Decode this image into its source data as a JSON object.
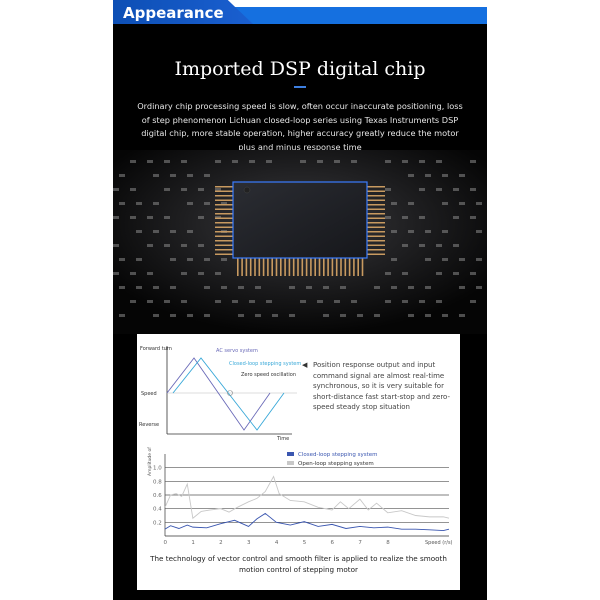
{
  "header": {
    "title": "Appearance"
  },
  "section": {
    "title": "Imported DSP digital chip",
    "description": "Ordinary chip processing speed is slow, often occur inaccurate positioning, loss of step phenomenon Lichuan closed-loop series using Texas Instruments DSP digital chip, more stable operation, higher accuracy greatly reduce the motor plus and minus response time"
  },
  "colors": {
    "accent": "#1570e0",
    "closed_loop": "#3a56b0",
    "open_loop": "#c8c8c8",
    "ac_servo": "#6a6ab8",
    "stepping": "#38a8d8"
  },
  "chart_data": [
    {
      "type": "line",
      "ylabels": [
        "Forward turn",
        "Speed",
        "Reverse"
      ],
      "xlabel": "Time",
      "series": [
        {
          "name": "AC servo system"
        },
        {
          "name": "Closed-loop stepping system"
        }
      ],
      "annotations": [
        "Zero speed oscillation"
      ]
    },
    {
      "type": "line",
      "ylabel": "Amplitude of vibration",
      "xlabel": "Speed (r/s)",
      "grid": true,
      "yticks": [
        0.2,
        0.4,
        0.6,
        0.8,
        1.0
      ],
      "xticks": [
        0,
        1,
        2,
        3,
        4,
        5,
        6,
        7,
        8
      ],
      "ylim": [
        0,
        1.2
      ],
      "xlim": [
        0,
        10.2
      ],
      "legend": "top-center",
      "series": [
        {
          "name": "Closed-loop stepping system",
          "x": [
            0,
            0.2,
            0.5,
            0.8,
            1,
            1.5,
            2,
            2.5,
            3,
            3.3,
            3.6,
            4,
            4.5,
            5,
            5.5,
            6,
            6.5,
            7,
            7.5,
            8,
            8.5,
            9,
            9.5,
            10,
            10.2
          ],
          "y": [
            0.1,
            0.15,
            0.11,
            0.16,
            0.13,
            0.12,
            0.18,
            0.23,
            0.14,
            0.25,
            0.33,
            0.2,
            0.16,
            0.21,
            0.14,
            0.17,
            0.11,
            0.14,
            0.12,
            0.13,
            0.1,
            0.1,
            0.09,
            0.08,
            0.1
          ]
        },
        {
          "name": "Open-loop stepping system",
          "x": [
            0,
            0.2,
            0.4,
            0.6,
            0.8,
            1,
            1.3,
            1.6,
            2,
            2.3,
            2.6,
            3,
            3.3,
            3.6,
            3.9,
            4.1,
            4.5,
            5,
            5.5,
            6,
            6.3,
            6.6,
            7,
            7.3,
            7.6,
            8,
            8.5,
            9,
            9.5,
            10,
            10.2
          ],
          "y": [
            0.42,
            0.6,
            0.62,
            0.58,
            0.76,
            0.26,
            0.36,
            0.38,
            0.4,
            0.35,
            0.42,
            0.5,
            0.55,
            0.65,
            0.87,
            0.62,
            0.52,
            0.5,
            0.42,
            0.38,
            0.5,
            0.4,
            0.54,
            0.38,
            0.48,
            0.34,
            0.37,
            0.3,
            0.28,
            0.28,
            0.26
          ]
        }
      ]
    }
  ],
  "chart1": {
    "y_forward": "Forward turn",
    "y_speed": "Speed",
    "y_reverse": "Reverse",
    "x_label": "Time",
    "label_ac": "AC servo system",
    "label_closed": "Closed-loop stepping system",
    "label_zero": "Zero speed oscillation"
  },
  "chart2": {
    "y_label": "Amplitude of vibration",
    "x_label": "Speed (r/s)",
    "legend_closed": "Closed-loop stepping system",
    "legend_open": "Open-loop stepping system"
  },
  "note": "Position response output and input command signal are almost real-time synchronous, so it is very suitable for short-distance fast start-stop and zero-speed steady stop situation",
  "caption": "The technology of vector control and smooth filter is applied to realize the smooth motion control of stepping motor"
}
